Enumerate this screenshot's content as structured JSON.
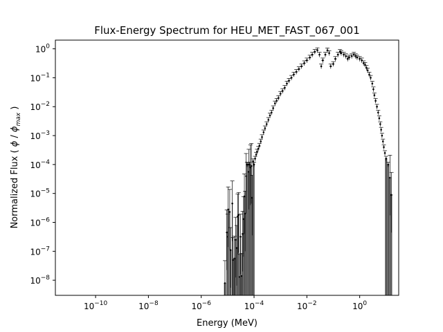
{
  "chart_data": {
    "type": "scatter",
    "title": "Flux-Energy Spectrum for HEU_MET_FAST_067_001",
    "xlabel": "Energy (MeV)",
    "ylabel": {
      "prefix": "Normalized Flux ( ",
      "phi": "ϕ",
      "slash": " / ",
      "phi_max": "ϕ",
      "sub": "max",
      "suffix": " )"
    },
    "xscale": "log",
    "yscale": "log",
    "xlim": [
      3e-12,
      30
    ],
    "ylim": [
      3e-09,
      2
    ],
    "xticks": [
      {
        "base": "10",
        "exp": "−10",
        "value": 1e-10
      },
      {
        "base": "10",
        "exp": "−8",
        "value": 1e-08
      },
      {
        "base": "10",
        "exp": "−6",
        "value": 1e-06
      },
      {
        "base": "10",
        "exp": "−4",
        "value": 0.0001
      },
      {
        "base": "10",
        "exp": "−2",
        "value": 0.01
      },
      {
        "base": "10",
        "exp": "0",
        "value": 1
      }
    ],
    "yticks": [
      {
        "base": "10",
        "exp": "0",
        "value": 1
      },
      {
        "base": "10",
        "exp": "−1",
        "value": 0.1
      },
      {
        "base": "10",
        "exp": "−2",
        "value": 0.01
      },
      {
        "base": "10",
        "exp": "−3",
        "value": 0.001
      },
      {
        "base": "10",
        "exp": "−4",
        "value": 0.0001
      },
      {
        "base": "10",
        "exp": "−5",
        "value": 1e-05
      },
      {
        "base": "10",
        "exp": "−6",
        "value": 1e-06
      },
      {
        "base": "10",
        "exp": "−7",
        "value": 1e-07
      },
      {
        "base": "10",
        "exp": "−8",
        "value": 1e-08
      }
    ],
    "grid": false,
    "marker_color": "#000000",
    "bar_color": "#555555",
    "points": [
      [
        7.9e-06,
        7.9e-09
      ],
      [
        9.3e-06,
        4.5e-07
      ],
      [
        1e-05,
        3.2e-07
      ],
      [
        1.05e-05,
        2.8e-06
      ],
      [
        1.2e-05,
        2.3e-06
      ],
      [
        1.3e-05,
        1.1e-07
      ],
      [
        1.5e-05,
        4.5e-06
      ],
      [
        1.6e-05,
        5e-08
      ],
      [
        1.8e-05,
        5.6e-08
      ],
      [
        2e-05,
        2.5e-07
      ],
      [
        2.2e-05,
        1.3e-07
      ],
      [
        2.4e-05,
        1.6e-06
      ],
      [
        2.6e-05,
        1.8e-06
      ],
      [
        2.9e-05,
        1.3e-08
      ],
      [
        3.1e-05,
        3.2e-07
      ],
      [
        3.4e-05,
        1.4e-08
      ],
      [
        3.7e-05,
        4e-07
      ],
      [
        4e-05,
        1.3e-06
      ],
      [
        4.3e-05,
        7.9e-06
      ],
      [
        4.6e-05,
        2e-06
      ],
      [
        5e-05,
        4e-05
      ],
      [
        5.4e-05,
        0.0001
      ],
      [
        5.8e-05,
        0.0001
      ],
      [
        6.3e-05,
        5.6e-05
      ],
      [
        6.8e-05,
        0.0001
      ],
      [
        7.3e-05,
        7.9e-05
      ],
      [
        7.9e-05,
        8.9e-05
      ],
      [
        8.5e-05,
        7.1e-06
      ],
      [
        9.2e-05,
        0.00013
      ],
      [
        0.0001,
        0.0001
      ],
      [
        0.00011,
        0.00016
      ],
      [
        0.00012,
        0.00022
      ],
      [
        0.00013,
        0.00028
      ],
      [
        0.000145,
        0.00035
      ],
      [
        0.00016,
        0.00045
      ],
      [
        0.00018,
        0.00063
      ],
      [
        0.0002,
        0.00089
      ],
      [
        0.00023,
        0.0013
      ],
      [
        0.00026,
        0.0018
      ],
      [
        0.0003,
        0.0025
      ],
      [
        0.00035,
        0.0035
      ],
      [
        0.0004,
        0.005
      ],
      [
        0.00046,
        0.0063
      ],
      [
        0.00053,
        0.0089
      ],
      [
        0.00062,
        0.013
      ],
      [
        0.00072,
        0.016
      ],
      [
        0.00084,
        0.02
      ],
      [
        0.001,
        0.028
      ],
      [
        0.0012,
        0.035
      ],
      [
        0.00145,
        0.045
      ],
      [
        0.00175,
        0.063
      ],
      [
        0.0021,
        0.079
      ],
      [
        0.0026,
        0.1
      ],
      [
        0.0032,
        0.13
      ],
      [
        0.004,
        0.16
      ],
      [
        0.005,
        0.2
      ],
      [
        0.0063,
        0.25
      ],
      [
        0.008,
        0.32
      ],
      [
        0.01,
        0.4
      ],
      [
        0.013,
        0.5
      ],
      [
        0.016,
        0.63
      ],
      [
        0.02,
        0.79
      ],
      [
        0.025,
        0.9
      ],
      [
        0.03,
        0.63
      ],
      [
        0.035,
        0.25
      ],
      [
        0.04,
        0.4
      ],
      [
        0.05,
        0.63
      ],
      [
        0.06,
        0.89
      ],
      [
        0.07,
        0.71
      ],
      [
        0.08,
        0.25
      ],
      [
        0.1,
        0.3
      ],
      [
        0.12,
        0.45
      ],
      [
        0.15,
        0.63
      ],
      [
        0.18,
        0.79
      ],
      [
        0.2,
        0.71
      ],
      [
        0.25,
        0.63
      ],
      [
        0.3,
        0.56
      ],
      [
        0.35,
        0.45
      ],
      [
        0.4,
        0.5
      ],
      [
        0.5,
        0.56
      ],
      [
        0.6,
        0.63
      ],
      [
        0.7,
        0.56
      ],
      [
        0.8,
        0.5
      ],
      [
        1.0,
        0.45
      ],
      [
        1.2,
        0.4
      ],
      [
        1.4,
        0.32
      ],
      [
        1.6,
        0.28
      ],
      [
        1.8,
        0.22
      ],
      [
        2.0,
        0.18
      ],
      [
        2.3,
        0.13
      ],
      [
        2.6,
        0.1
      ],
      [
        3.0,
        0.063
      ],
      [
        3.3,
        0.04
      ],
      [
        3.6,
        0.025
      ],
      [
        4.0,
        0.016
      ],
      [
        4.5,
        0.01
      ],
      [
        5.0,
        0.0063
      ],
      [
        5.5,
        0.004
      ],
      [
        6.0,
        0.0025
      ],
      [
        6.5,
        0.0016
      ],
      [
        7.0,
        0.001
      ],
      [
        7.6,
        0.00063
      ],
      [
        8.2,
        0.0004
      ],
      [
        9.0,
        0.00025
      ],
      [
        10,
        0.00016
      ],
      [
        12,
        0.0001
      ],
      [
        14,
        3.5e-05
      ],
      [
        16,
        8.9e-06
      ]
    ],
    "bars_upto": 0.0001,
    "tail_bar": [
      10,
      16
    ]
  }
}
